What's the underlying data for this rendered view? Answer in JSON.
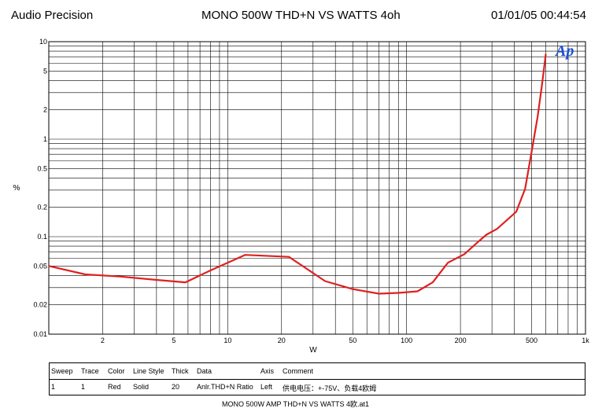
{
  "header": {
    "left": "Audio Precision",
    "center": "MONO 500W THD+N  VS    WATTS 4oh",
    "right": "01/01/05 00:44:54"
  },
  "logo_text": "Ap",
  "footer": "MONO 500W AMP THD+N VS WATTS 4欧.at1",
  "legend": {
    "headers": [
      "Sweep",
      "Trace",
      "Color",
      "Line Style",
      "Thick",
      "Data",
      "Axis",
      "Comment"
    ],
    "row": [
      "1",
      "1",
      "Red",
      "Solid",
      "20",
      "Anlr.THD+N Ratio",
      "Left",
      "供电电压：+-75V、负载4欧姆"
    ]
  },
  "chart_data": {
    "type": "line",
    "xscale": "log",
    "yscale": "log",
    "xlabel": "W",
    "ylabel": "%",
    "xlim": [
      1,
      1000
    ],
    "ylim": [
      0.01,
      10
    ],
    "xticks": [
      {
        "value": 2,
        "label": "2"
      },
      {
        "value": 5,
        "label": "5"
      },
      {
        "value": 10,
        "label": "10"
      },
      {
        "value": 20,
        "label": "20"
      },
      {
        "value": 50,
        "label": "50"
      },
      {
        "value": 100,
        "label": "100"
      },
      {
        "value": 200,
        "label": "200"
      },
      {
        "value": 500,
        "label": "500"
      },
      {
        "value": 1000,
        "label": "1k"
      }
    ],
    "yticks": [
      {
        "value": 0.01,
        "label": "0.01"
      },
      {
        "value": 0.02,
        "label": "0.02"
      },
      {
        "value": 0.05,
        "label": "0.05"
      },
      {
        "value": 0.1,
        "label": "0.1"
      },
      {
        "value": 0.2,
        "label": "0.2"
      },
      {
        "value": 0.5,
        "label": "0.5"
      },
      {
        "value": 1,
        "label": "1"
      },
      {
        "value": 2,
        "label": "2"
      },
      {
        "value": 5,
        "label": "5"
      },
      {
        "value": 10,
        "label": "10"
      }
    ],
    "grid": true,
    "series": [
      {
        "color": "#e02020",
        "x": [
          1.0,
          1.6,
          2.5,
          4.0,
          5.8,
          8.0,
          12.5,
          22.0,
          35.0,
          50.0,
          70.0,
          90.0,
          115.0,
          140.0,
          170.0,
          210.0,
          250.0,
          280.0,
          320.0,
          410.0,
          460.0,
          500.0,
          540.0,
          570.0,
          600.0
        ],
        "y": [
          0.05,
          0.041,
          0.039,
          0.036,
          0.034,
          0.045,
          0.065,
          0.062,
          0.035,
          0.029,
          0.026,
          0.0265,
          0.0275,
          0.034,
          0.054,
          0.066,
          0.088,
          0.105,
          0.12,
          0.18,
          0.31,
          0.75,
          1.7,
          3.5,
          7.5
        ]
      }
    ]
  }
}
